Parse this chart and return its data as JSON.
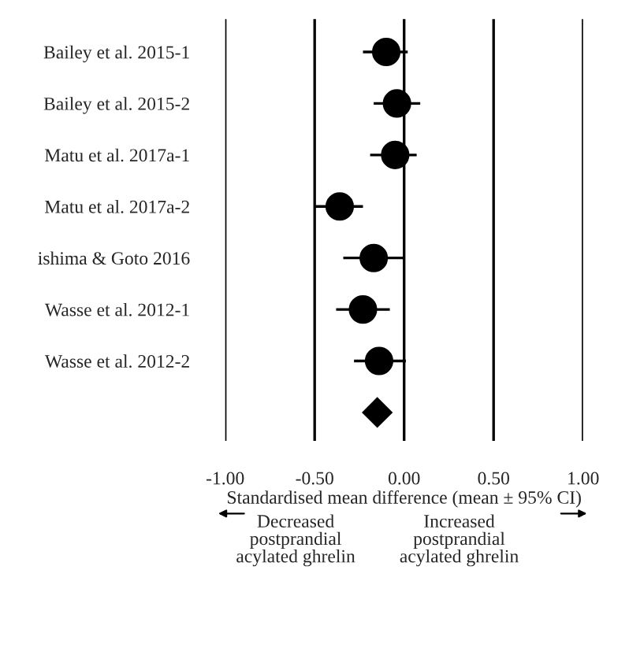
{
  "chart_data": {
    "type": "scatter",
    "orientation": "horizontal",
    "categories": [
      "Bailey et al. 2015-1",
      "Bailey et al. 2015-2",
      "Matu et al. 2017a-1",
      "Matu et al. 2017a-2",
      "ishima & Goto 2016",
      "Wasse et al. 2012-1",
      "Wasse et al. 2012-2",
      null
    ],
    "series": [
      {
        "color": "#000000",
        "marker": "circle",
        "values": [
          -0.1,
          -0.04,
          -0.05,
          -0.36,
          -0.17,
          -0.23,
          -0.14,
          null
        ],
        "errors": [
          [
            -0.23,
            0.02
          ],
          [
            -0.17,
            0.09
          ],
          [
            -0.19,
            0.07
          ],
          [
            -0.5,
            -0.23
          ],
          [
            -0.34,
            0.0
          ],
          [
            -0.38,
            -0.08
          ],
          [
            -0.28,
            0.01
          ],
          null
        ]
      },
      {
        "color": "#000000",
        "marker": "diamond",
        "values": [
          null,
          null,
          null,
          null,
          null,
          null,
          null,
          -0.15
        ]
      }
    ],
    "xlim": [
      -1.0,
      1.0
    ],
    "xticks": [
      {
        "value": -1.0,
        "label": "-1.00"
      },
      {
        "value": -0.5,
        "label": "-0.50"
      },
      {
        "value": 0.0,
        "label": "0.00"
      },
      {
        "value": 0.5,
        "label": "0.50"
      },
      {
        "value": 1.0,
        "label": "1.00"
      }
    ],
    "xlabel": "Standardised mean difference (mean ± 95% CI)",
    "grid": "x",
    "legend": false,
    "annotations": [
      "Decreased\npostprandial\nacylated ghrelin",
      "Increased\npostprandial\nacylated ghrelin"
    ]
  }
}
